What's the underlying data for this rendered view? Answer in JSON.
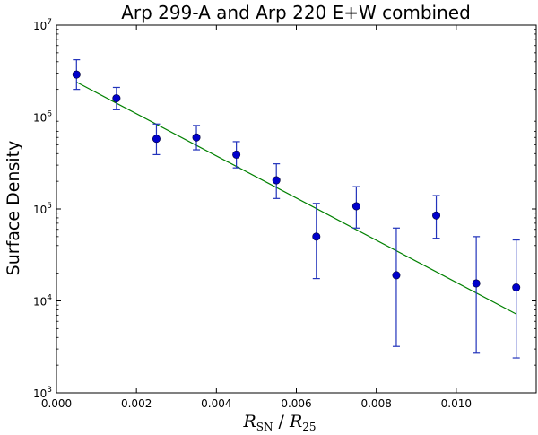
{
  "chart_data": {
    "type": "scatter",
    "title": "Arp 299-A and Arp 220 E+W combined",
    "ylabel": "Surface Density",
    "xlabel": {
      "main_r": "R",
      "sub_sn": "SN",
      "slash": " / ",
      "sub_25": "25"
    },
    "x_ticks": [
      "0.000",
      "0.002",
      "0.004",
      "0.006",
      "0.008",
      "0.010"
    ],
    "y_ticks": [
      {
        "base": "10",
        "exp": "3"
      },
      {
        "base": "10",
        "exp": "4"
      },
      {
        "base": "10",
        "exp": "5"
      },
      {
        "base": "10",
        "exp": "6"
      },
      {
        "base": "10",
        "exp": "7"
      }
    ],
    "xlim": [
      0.0,
      0.012
    ],
    "ylim": [
      1000,
      10000000
    ],
    "y_scale": "log",
    "colors": {
      "points": "#0000cc",
      "errorbars": "#2233bb",
      "fit": "#008000"
    },
    "series": [
      {
        "points": [
          {
            "x": 0.0005,
            "y": 2900000,
            "ylow": 2000000,
            "yhigh": 4200000
          },
          {
            "x": 0.0015,
            "y": 1600000,
            "ylow": 1200000,
            "yhigh": 2100000
          },
          {
            "x": 0.0025,
            "y": 580000,
            "ylow": 390000,
            "yhigh": 840000
          },
          {
            "x": 0.0035,
            "y": 600000,
            "ylow": 440000,
            "yhigh": 810000
          },
          {
            "x": 0.0045,
            "y": 390000,
            "ylow": 280000,
            "yhigh": 540000
          },
          {
            "x": 0.0055,
            "y": 205000,
            "ylow": 130000,
            "yhigh": 310000
          },
          {
            "x": 0.0065,
            "y": 50000,
            "ylow": 17500,
            "yhigh": 115000
          },
          {
            "x": 0.0075,
            "y": 107000,
            "ylow": 62000,
            "yhigh": 175000
          },
          {
            "x": 0.0085,
            "y": 19000,
            "ylow": 3200,
            "yhigh": 62000
          },
          {
            "x": 0.0095,
            "y": 85000,
            "ylow": 48000,
            "yhigh": 140000
          },
          {
            "x": 0.0105,
            "y": 15500,
            "ylow": 2700,
            "yhigh": 50000
          },
          {
            "x": 0.0115,
            "y": 14000,
            "ylow": 2400,
            "yhigh": 46000
          }
        ]
      }
    ],
    "fit_line": {
      "x": [
        0.0005,
        0.0115
      ],
      "y": [
        2400000,
        7200
      ]
    }
  }
}
